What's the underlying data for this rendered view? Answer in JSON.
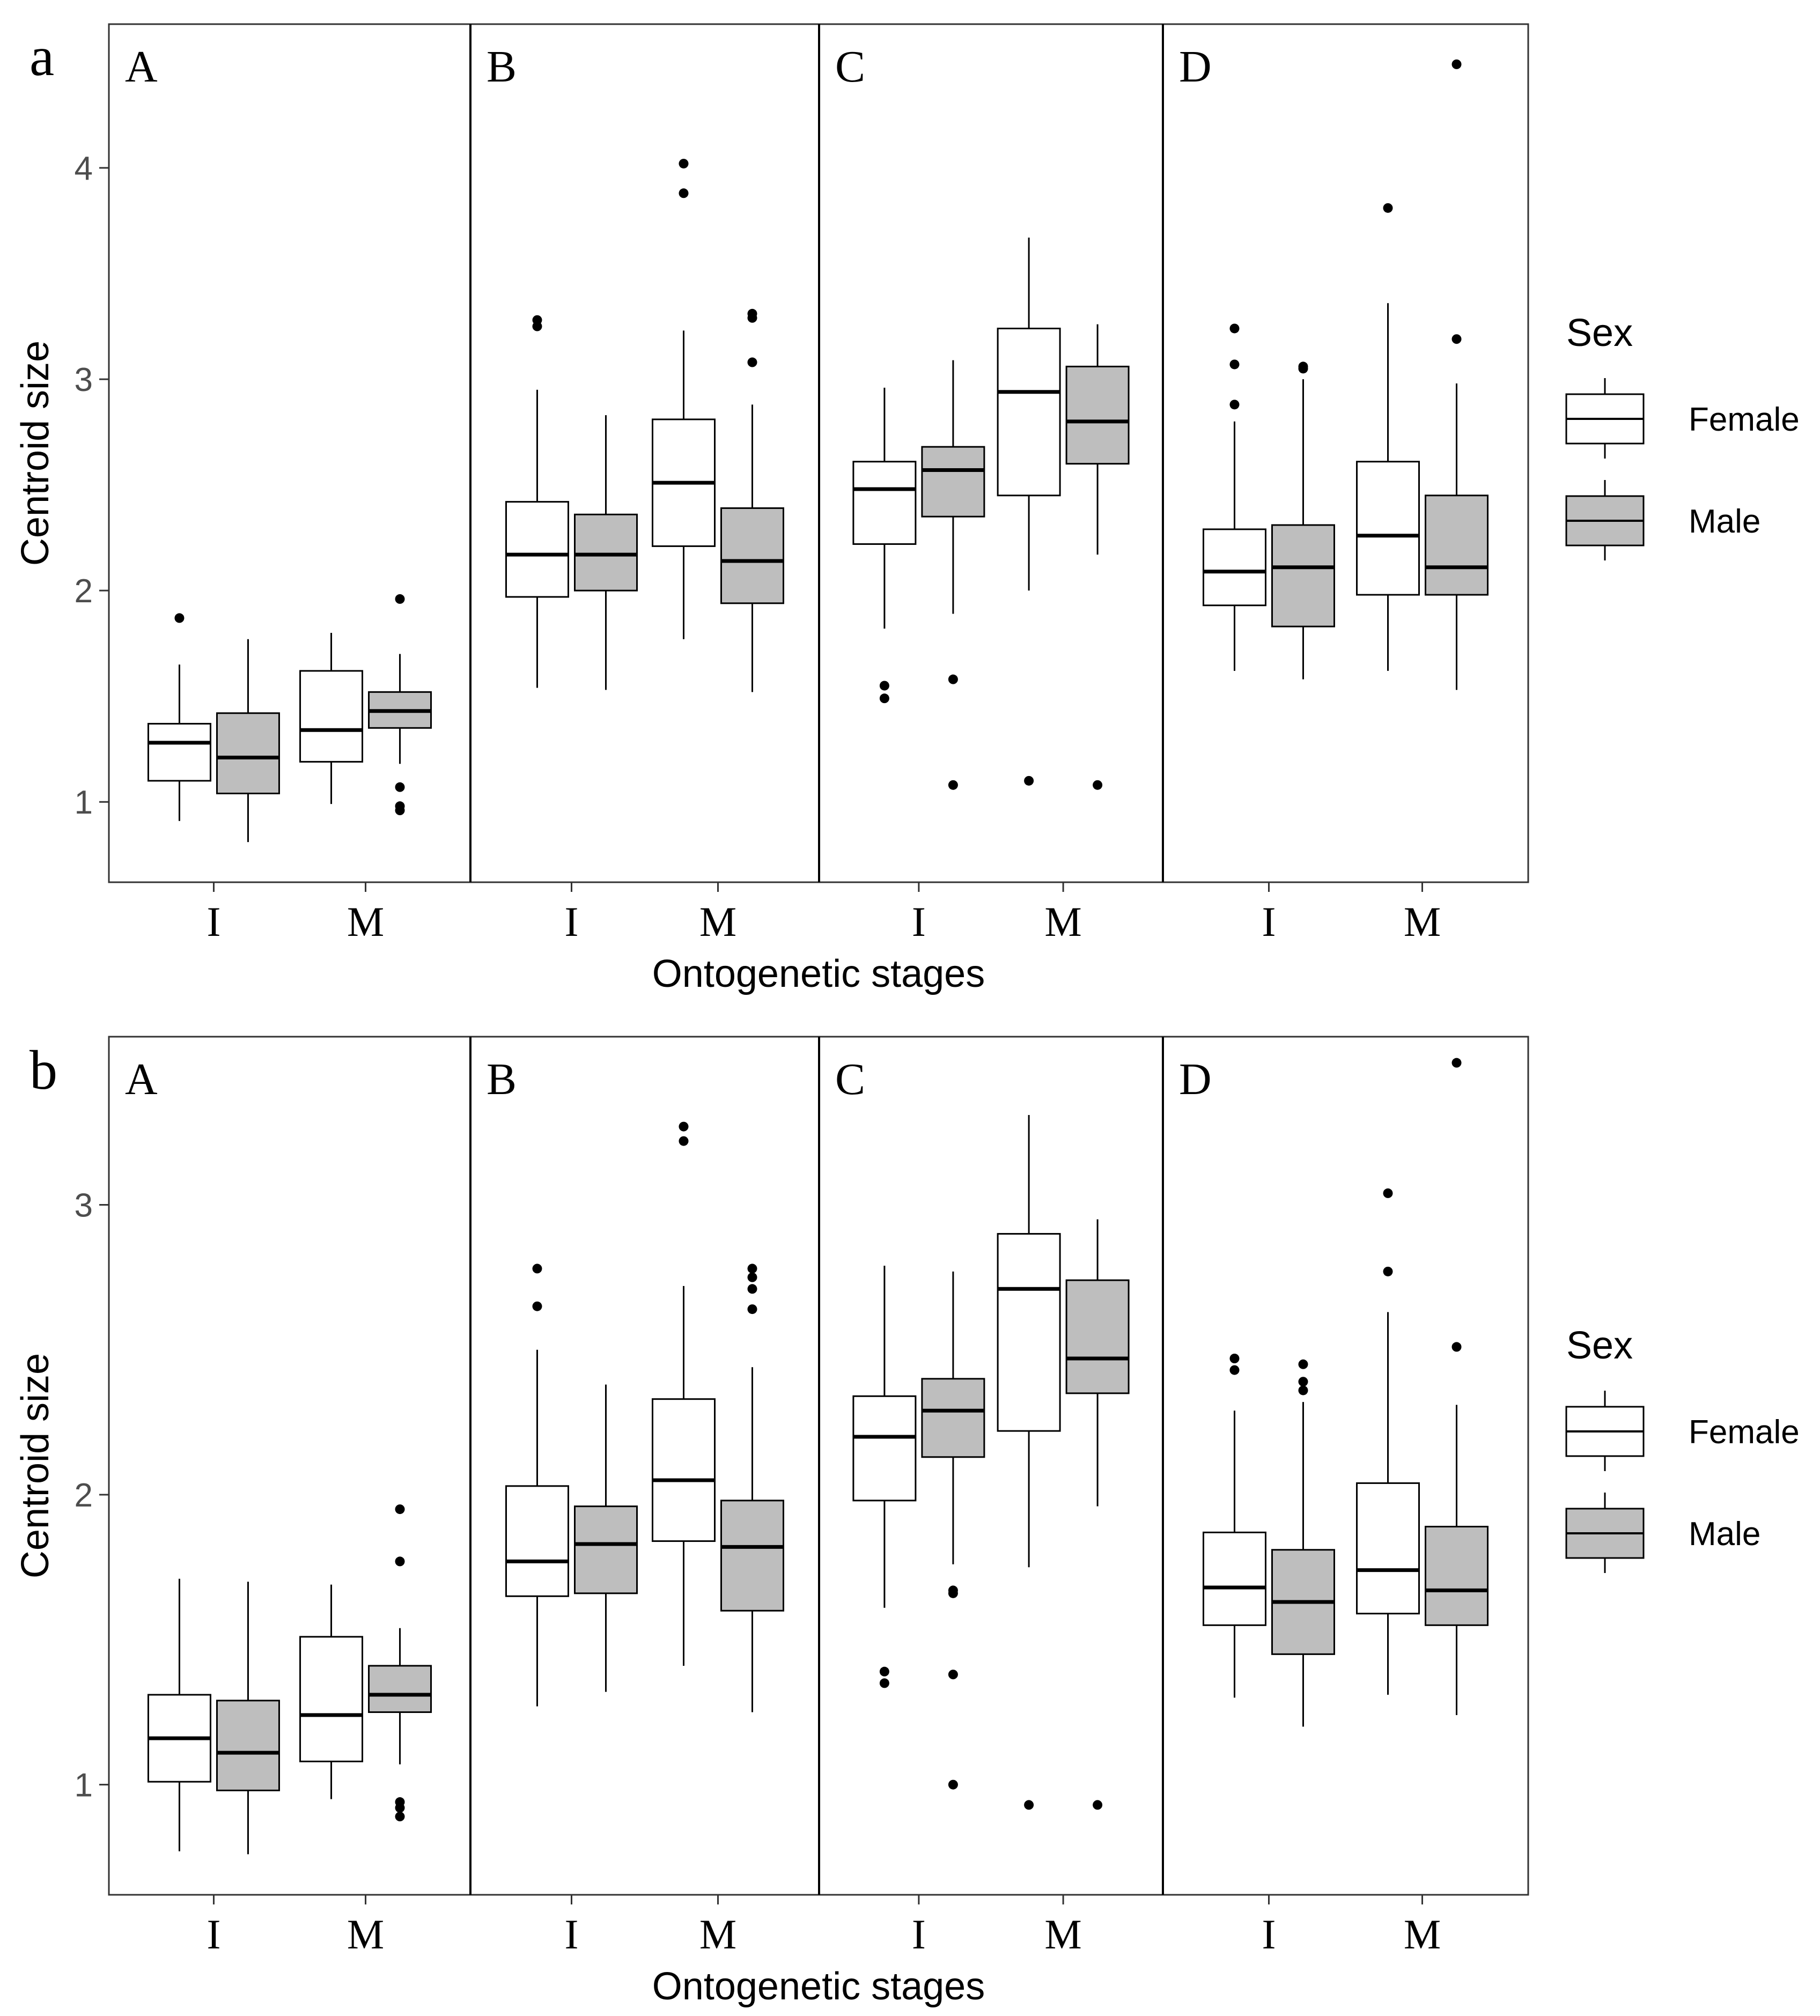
{
  "colors": {
    "female": "#ffffff",
    "male": "#bebebe",
    "stroke": "#000000",
    "tick_text": "#4d4d4d"
  },
  "chart_data": [
    {
      "id": "a",
      "panel_label": "a",
      "type": "boxplot",
      "xlabel": "Ontogenetic stages",
      "ylabel": "Centroid size",
      "ylim": [
        0.62,
        4.68
      ],
      "yticks": [
        1,
        2,
        3,
        4
      ],
      "facets": [
        "A",
        "B",
        "C",
        "D"
      ],
      "stages": [
        "I",
        "M"
      ],
      "legend": {
        "title": "Sex",
        "entries": [
          "Female",
          "Male"
        ]
      },
      "boxes": [
        {
          "facet": "A",
          "stage": "I",
          "sex": "Female",
          "wlo": 0.91,
          "q1": 1.1,
          "med": 1.28,
          "q3": 1.37,
          "whi": 1.65,
          "outliers": [
            1.87
          ]
        },
        {
          "facet": "A",
          "stage": "I",
          "sex": "Male",
          "wlo": 0.81,
          "q1": 1.04,
          "med": 1.21,
          "q3": 1.42,
          "whi": 1.77,
          "outliers": []
        },
        {
          "facet": "A",
          "stage": "M",
          "sex": "Female",
          "wlo": 0.99,
          "q1": 1.19,
          "med": 1.34,
          "q3": 1.62,
          "whi": 1.8,
          "outliers": []
        },
        {
          "facet": "A",
          "stage": "M",
          "sex": "Male",
          "wlo": 1.18,
          "q1": 1.35,
          "med": 1.43,
          "q3": 1.52,
          "whi": 1.7,
          "outliers": [
            1.96,
            1.07,
            0.98,
            0.96
          ]
        },
        {
          "facet": "B",
          "stage": "I",
          "sex": "Female",
          "wlo": 1.54,
          "q1": 1.97,
          "med": 2.17,
          "q3": 2.42,
          "whi": 2.95,
          "outliers": [
            3.28,
            3.25
          ]
        },
        {
          "facet": "B",
          "stage": "I",
          "sex": "Male",
          "wlo": 1.53,
          "q1": 2.0,
          "med": 2.17,
          "q3": 2.36,
          "whi": 2.83,
          "outliers": []
        },
        {
          "facet": "B",
          "stage": "M",
          "sex": "Female",
          "wlo": 1.77,
          "q1": 2.21,
          "med": 2.51,
          "q3": 2.81,
          "whi": 3.23,
          "outliers": [
            4.02,
            3.88
          ]
        },
        {
          "facet": "B",
          "stage": "M",
          "sex": "Male",
          "wlo": 1.52,
          "q1": 1.94,
          "med": 2.14,
          "q3": 2.39,
          "whi": 2.88,
          "outliers": [
            3.31,
            3.29,
            3.08
          ]
        },
        {
          "facet": "C",
          "stage": "I",
          "sex": "Female",
          "wlo": 1.82,
          "q1": 2.22,
          "med": 2.48,
          "q3": 2.61,
          "whi": 2.96,
          "outliers": [
            1.55,
            1.49
          ]
        },
        {
          "facet": "C",
          "stage": "I",
          "sex": "Male",
          "wlo": 1.89,
          "q1": 2.35,
          "med": 2.57,
          "q3": 2.68,
          "whi": 3.09,
          "outliers": [
            1.58,
            1.08
          ]
        },
        {
          "facet": "C",
          "stage": "M",
          "sex": "Female",
          "wlo": 2.0,
          "q1": 2.45,
          "med": 2.94,
          "q3": 3.24,
          "whi": 3.67,
          "outliers": [
            1.1
          ]
        },
        {
          "facet": "C",
          "stage": "M",
          "sex": "Male",
          "wlo": 2.17,
          "q1": 2.6,
          "med": 2.8,
          "q3": 3.06,
          "whi": 3.26,
          "outliers": [
            1.08
          ]
        },
        {
          "facet": "D",
          "stage": "I",
          "sex": "Female",
          "wlo": 1.62,
          "q1": 1.93,
          "med": 2.09,
          "q3": 2.29,
          "whi": 2.8,
          "outliers": [
            3.24,
            3.07,
            2.88
          ]
        },
        {
          "facet": "D",
          "stage": "I",
          "sex": "Male",
          "wlo": 1.58,
          "q1": 1.83,
          "med": 2.11,
          "q3": 2.31,
          "whi": 3.0,
          "outliers": [
            3.06,
            3.05
          ]
        },
        {
          "facet": "D",
          "stage": "M",
          "sex": "Female",
          "wlo": 1.62,
          "q1": 1.98,
          "med": 2.26,
          "q3": 2.61,
          "whi": 3.36,
          "outliers": [
            3.81
          ]
        },
        {
          "facet": "D",
          "stage": "M",
          "sex": "Male",
          "wlo": 1.53,
          "q1": 1.98,
          "med": 2.11,
          "q3": 2.45,
          "whi": 2.98,
          "outliers": [
            4.49,
            3.19
          ]
        }
      ]
    },
    {
      "id": "b",
      "panel_label": "b",
      "type": "boxplot",
      "xlabel": "Ontogenetic stages",
      "ylabel": "Centroid size",
      "ylim": [
        0.62,
        3.58
      ],
      "yticks": [
        1,
        2,
        3
      ],
      "facets": [
        "A",
        "B",
        "C",
        "D"
      ],
      "stages": [
        "I",
        "M"
      ],
      "legend": {
        "title": "Sex",
        "entries": [
          "Female",
          "Male"
        ]
      },
      "boxes": [
        {
          "facet": "A",
          "stage": "I",
          "sex": "Female",
          "wlo": 0.77,
          "q1": 1.01,
          "med": 1.16,
          "q3": 1.31,
          "whi": 1.71,
          "outliers": []
        },
        {
          "facet": "A",
          "stage": "I",
          "sex": "Male",
          "wlo": 0.76,
          "q1": 0.98,
          "med": 1.11,
          "q3": 1.29,
          "whi": 1.7,
          "outliers": []
        },
        {
          "facet": "A",
          "stage": "M",
          "sex": "Female",
          "wlo": 0.95,
          "q1": 1.08,
          "med": 1.24,
          "q3": 1.51,
          "whi": 1.69,
          "outliers": []
        },
        {
          "facet": "A",
          "stage": "M",
          "sex": "Male",
          "wlo": 1.07,
          "q1": 1.25,
          "med": 1.31,
          "q3": 1.41,
          "whi": 1.54,
          "outliers": [
            1.95,
            1.77,
            0.94,
            0.92,
            0.89
          ]
        },
        {
          "facet": "B",
          "stage": "I",
          "sex": "Female",
          "wlo": 1.27,
          "q1": 1.65,
          "med": 1.77,
          "q3": 2.03,
          "whi": 2.5,
          "outliers": [
            2.78,
            2.65
          ]
        },
        {
          "facet": "B",
          "stage": "I",
          "sex": "Male",
          "wlo": 1.32,
          "q1": 1.66,
          "med": 1.83,
          "q3": 1.96,
          "whi": 2.38,
          "outliers": []
        },
        {
          "facet": "B",
          "stage": "M",
          "sex": "Female",
          "wlo": 1.41,
          "q1": 1.84,
          "med": 2.05,
          "q3": 2.33,
          "whi": 2.72,
          "outliers": [
            3.27,
            3.22
          ]
        },
        {
          "facet": "B",
          "stage": "M",
          "sex": "Male",
          "wlo": 1.25,
          "q1": 1.6,
          "med": 1.82,
          "q3": 1.98,
          "whi": 2.44,
          "outliers": [
            2.78,
            2.75,
            2.71,
            2.64
          ]
        },
        {
          "facet": "C",
          "stage": "I",
          "sex": "Female",
          "wlo": 1.61,
          "q1": 1.98,
          "med": 2.2,
          "q3": 2.34,
          "whi": 2.79,
          "outliers": [
            1.39,
            1.35
          ]
        },
        {
          "facet": "C",
          "stage": "I",
          "sex": "Male",
          "wlo": 1.76,
          "q1": 2.13,
          "med": 2.29,
          "q3": 2.4,
          "whi": 2.77,
          "outliers": [
            1.67,
            1.66,
            1.38,
            1.0
          ]
        },
        {
          "facet": "C",
          "stage": "M",
          "sex": "Female",
          "wlo": 1.75,
          "q1": 2.22,
          "med": 2.71,
          "q3": 2.9,
          "whi": 3.31,
          "outliers": [
            0.93
          ]
        },
        {
          "facet": "C",
          "stage": "M",
          "sex": "Male",
          "wlo": 1.96,
          "q1": 2.35,
          "med": 2.47,
          "q3": 2.74,
          "whi": 2.95,
          "outliers": [
            0.93
          ]
        },
        {
          "facet": "D",
          "stage": "I",
          "sex": "Female",
          "wlo": 1.3,
          "q1": 1.55,
          "med": 1.68,
          "q3": 1.87,
          "whi": 2.29,
          "outliers": [
            2.47,
            2.43
          ]
        },
        {
          "facet": "D",
          "stage": "I",
          "sex": "Male",
          "wlo": 1.2,
          "q1": 1.45,
          "med": 1.63,
          "q3": 1.81,
          "whi": 2.32,
          "outliers": [
            2.45,
            2.39,
            2.36
          ]
        },
        {
          "facet": "D",
          "stage": "M",
          "sex": "Female",
          "wlo": 1.31,
          "q1": 1.59,
          "med": 1.74,
          "q3": 2.04,
          "whi": 2.63,
          "outliers": [
            3.04,
            2.77
          ]
        },
        {
          "facet": "D",
          "stage": "M",
          "sex": "Male",
          "wlo": 1.24,
          "q1": 1.55,
          "med": 1.67,
          "q3": 1.89,
          "whi": 2.31,
          "outliers": [
            3.49,
            2.51
          ]
        }
      ]
    }
  ]
}
